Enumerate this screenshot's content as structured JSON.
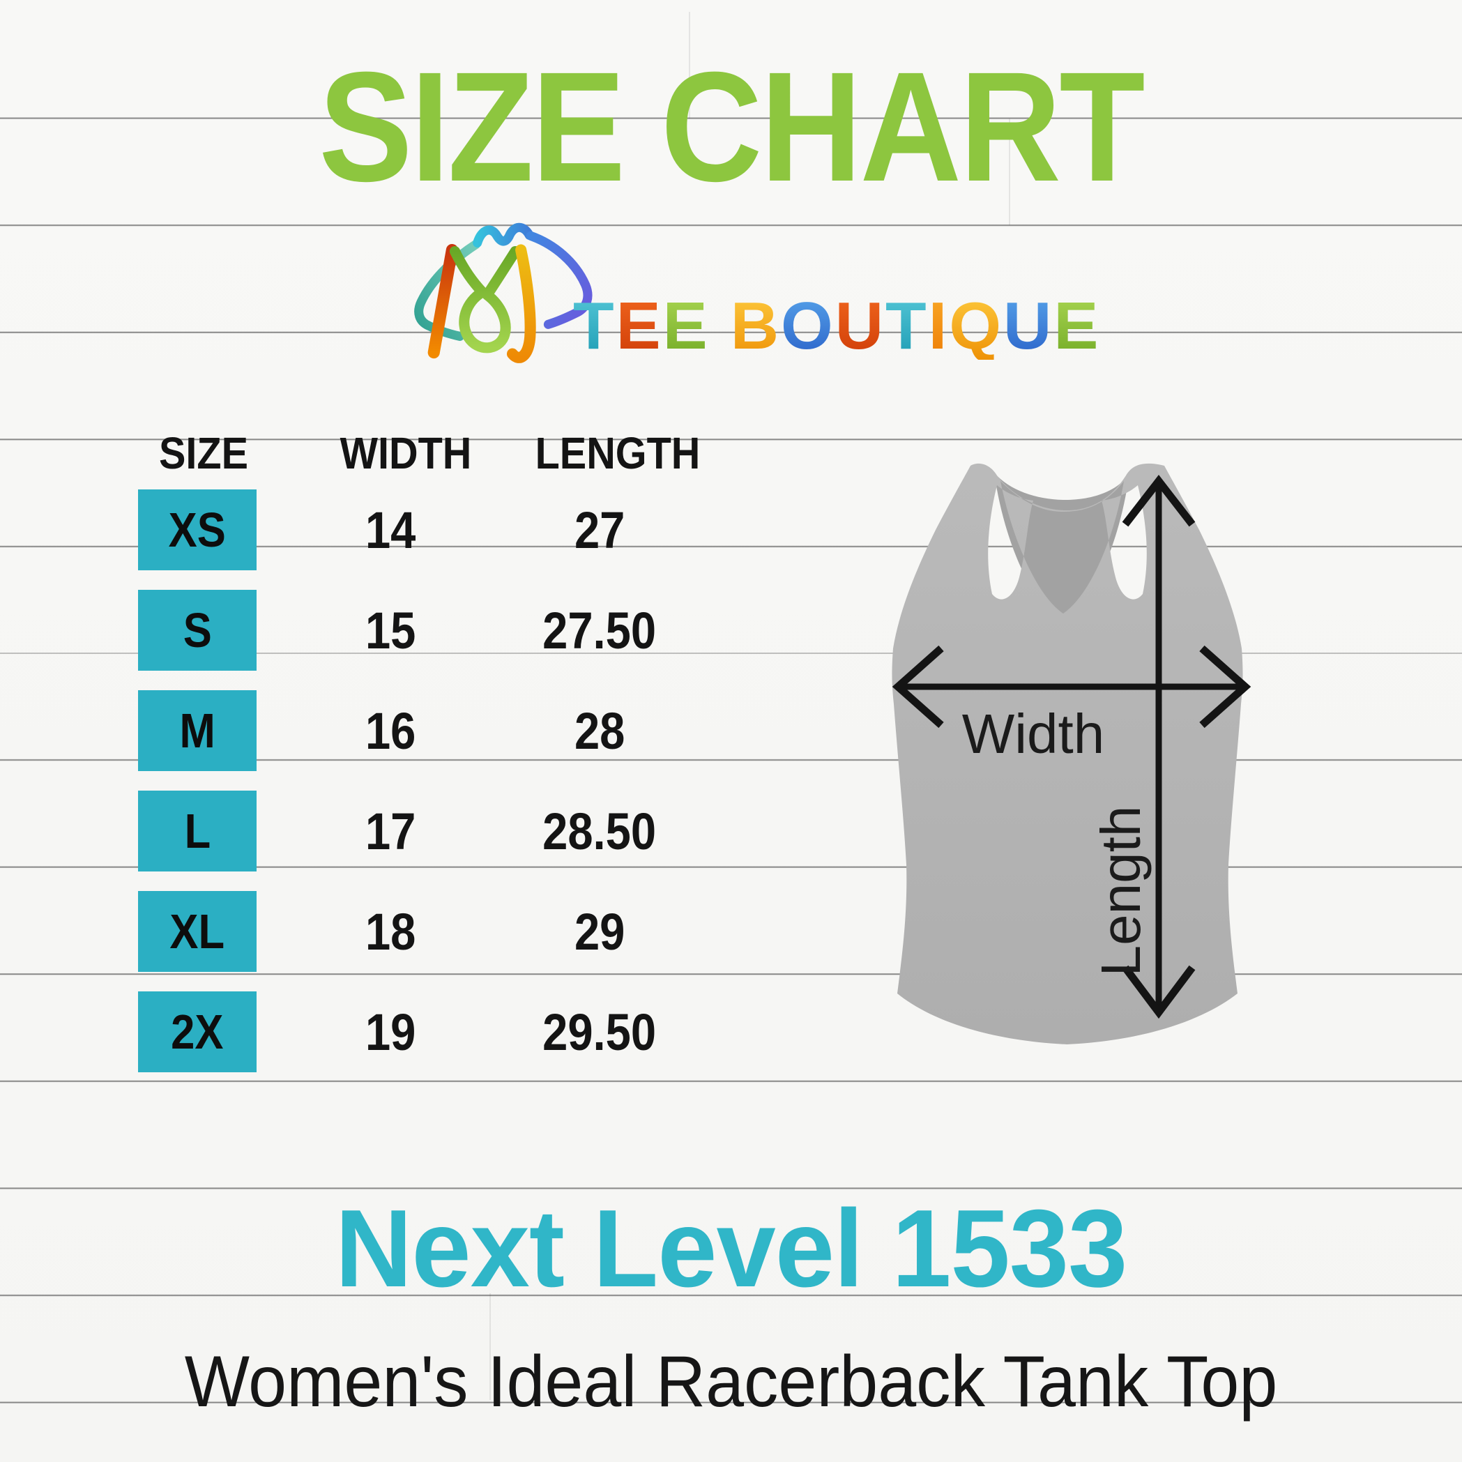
{
  "title": "SIZE CHART",
  "brand": {
    "name": "TEE BOUTIQUE",
    "letters": [
      {
        "ch": "T",
        "tone": "teal"
      },
      {
        "ch": "E",
        "tone": "red"
      },
      {
        "ch": "E",
        "tone": "green"
      },
      {
        "ch": " ",
        "tone": "space"
      },
      {
        "ch": "B",
        "tone": "amber"
      },
      {
        "ch": "O",
        "tone": "blue"
      },
      {
        "ch": "U",
        "tone": "red"
      },
      {
        "ch": "T",
        "tone": "teal"
      },
      {
        "ch": "I",
        "tone": "orange"
      },
      {
        "ch": "Q",
        "tone": "amber"
      },
      {
        "ch": "U",
        "tone": "blue"
      },
      {
        "ch": "E",
        "tone": "green"
      }
    ]
  },
  "table": {
    "headers": [
      "SIZE",
      "WIDTH",
      "LENGTH"
    ],
    "rows": [
      {
        "size": "XS",
        "width": "14",
        "length": "27"
      },
      {
        "size": "S",
        "width": "15",
        "length": "27.50"
      },
      {
        "size": "M",
        "width": "16",
        "length": "28"
      },
      {
        "size": "L",
        "width": "17",
        "length": "28.50"
      },
      {
        "size": "XL",
        "width": "18",
        "length": "29"
      },
      {
        "size": "2X",
        "width": "19",
        "length": "29.50"
      }
    ]
  },
  "chart_data": {
    "type": "table",
    "title": "SIZE CHART",
    "columns": [
      "SIZE",
      "WIDTH",
      "LENGTH"
    ],
    "rows": [
      [
        "XS",
        "14",
        "27"
      ],
      [
        "S",
        "15",
        "27.50"
      ],
      [
        "M",
        "16",
        "28"
      ],
      [
        "L",
        "17",
        "28.50"
      ],
      [
        "XL",
        "18",
        "29"
      ],
      [
        "2X",
        "19",
        "29.50"
      ]
    ]
  },
  "diagram": {
    "garment": "womens-racerback-tank-top",
    "width_label": "Width",
    "length_label": "Length"
  },
  "footer": {
    "model": "Next Level 1533",
    "product": "Women's Ideal Racerback Tank Top"
  },
  "colors": {
    "title_green": "#8dc63f",
    "box_teal": "#2bafc3",
    "footer_teal": "#30b6c8",
    "tank_gray": "#b5b5b5",
    "tank_back_gray": "#a2a2a2",
    "text_black": "#141414"
  }
}
